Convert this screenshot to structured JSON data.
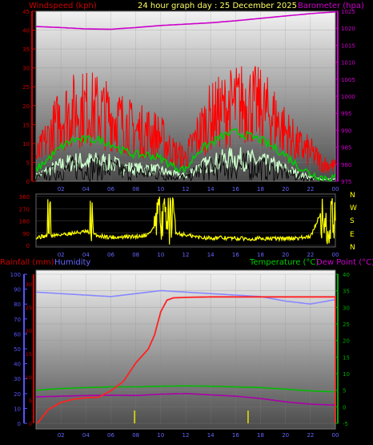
{
  "header": {
    "wind_title": "Windspeed (kph)",
    "main_title": "24 hour graph day : 25 December 2025",
    "baro_title": "Barometer (hpa)",
    "rain_title": "Rainfall (mm)",
    "humidity_title": "Humidity",
    "temp_title": "Temperature (°C)",
    "dew_title": "Dew Point (°C)"
  },
  "colors": {
    "gust": "#ff0000",
    "wind_avg": "#00cc00",
    "wind_low": "#ccffcc",
    "barometer": "#cc00cc",
    "direction": "#ffff00",
    "rain": "#ff2222",
    "humidity": "#8888ff",
    "temperature": "#00bb00",
    "dewpoint": "#aa00aa",
    "axis_left": "#cc0000",
    "axis_right": "#cc00cc",
    "axis_humid": "#5555ff",
    "axis_temp": "#00aa00",
    "hour_labels": "#6666ff"
  },
  "compass": [
    "N",
    "W",
    "S",
    "E",
    "N"
  ],
  "chart_data": [
    {
      "type": "line",
      "id": "wind_baro",
      "x_ticks": [
        "02",
        "04",
        "06",
        "08",
        "10",
        "12",
        "14",
        "16",
        "18",
        "20",
        "22",
        "00"
      ],
      "y_left_ticks": [
        "0",
        "5",
        "10",
        "15",
        "20",
        "25",
        "30",
        "35",
        "40",
        "45"
      ],
      "y_right_ticks": [
        "975",
        "980",
        "985",
        "990",
        "995",
        "1000",
        "1005",
        "1010",
        "1015",
        "1020",
        "1025"
      ],
      "ylim_left": [
        0,
        45
      ],
      "ylim_right": [
        975,
        1025
      ],
      "series": [
        {
          "name": "Windspeed (kph)",
          "x": [
            0,
            1,
            2,
            3,
            4,
            5,
            6,
            7,
            8,
            9,
            10,
            11,
            12,
            13,
            14,
            15,
            16,
            17,
            18,
            19,
            20,
            21,
            22,
            23,
            24
          ],
          "values": [
            8,
            15,
            22,
            24,
            25,
            24,
            22,
            20,
            17,
            17,
            15,
            10,
            8,
            16,
            22,
            24,
            26,
            27,
            25,
            22,
            17,
            12,
            10,
            6,
            5
          ]
        },
        {
          "name": "Average wind",
          "x": [
            0,
            1,
            2,
            3,
            4,
            5,
            6,
            7,
            8,
            9,
            10,
            11,
            12,
            13,
            14,
            15,
            16,
            17,
            18,
            19,
            20,
            21,
            22,
            23,
            24
          ],
          "values": [
            3,
            6,
            9,
            11,
            11,
            11,
            10,
            8,
            7,
            7,
            6,
            4,
            3,
            8,
            10,
            12,
            13,
            12,
            11,
            9,
            7,
            4,
            2,
            1,
            1
          ]
        },
        {
          "name": "Barometer (hpa)",
          "x": [
            0,
            2,
            4,
            6,
            8,
            10,
            12,
            14,
            16,
            18,
            20,
            22,
            24
          ],
          "values": [
            1020.5,
            1020.2,
            1019.8,
            1019.7,
            1020.2,
            1020.8,
            1021.2,
            1021.6,
            1022.2,
            1022.9,
            1023.6,
            1024.3,
            1024.8
          ]
        }
      ]
    },
    {
      "type": "scatter",
      "id": "direction",
      "x_ticks": [
        "02",
        "04",
        "06",
        "08",
        "10",
        "12",
        "14",
        "16",
        "18",
        "20",
        "22",
        "00"
      ],
      "y_ticks": [
        "0",
        "90",
        "180",
        "270",
        "360"
      ],
      "ylim": [
        0,
        360
      ],
      "series": [
        {
          "name": "Wind direction",
          "x": [
            0,
            1,
            2,
            3,
            4,
            5,
            6,
            7,
            8,
            9,
            10,
            11,
            12,
            13,
            14,
            15,
            16,
            17,
            18,
            19,
            20,
            21,
            22,
            23,
            24
          ],
          "values": [
            60,
            70,
            80,
            90,
            100,
            70,
            60,
            60,
            65,
            80,
            200,
            100,
            75,
            60,
            55,
            55,
            50,
            50,
            50,
            50,
            50,
            55,
            60,
            280,
            200
          ]
        }
      ]
    },
    {
      "type": "line",
      "id": "rain_temp",
      "x_ticks": [
        "02",
        "04",
        "06",
        "08",
        "10",
        "12",
        "14",
        "16",
        "18",
        "20",
        "22",
        "00"
      ],
      "y_humid_ticks": [
        "0",
        "10",
        "20",
        "30",
        "40",
        "50",
        "60",
        "70",
        "80",
        "90",
        "100"
      ],
      "y_rain_ticks": [
        "0",
        "5",
        "10",
        "15",
        "20",
        "25",
        "30"
      ],
      "y_temp_ticks": [
        "-5",
        "0",
        "5",
        "10",
        "15",
        "20",
        "25",
        "30",
        "35",
        "40"
      ],
      "ylim_humid": [
        0,
        100
      ],
      "ylim_rain": [
        0,
        30
      ],
      "ylim_temp": [
        -5,
        40
      ],
      "series": [
        {
          "name": "Rainfall (mm)",
          "x": [
            0,
            1,
            2,
            3,
            4,
            5,
            6,
            7,
            8,
            9,
            9.5,
            10,
            10.5,
            11,
            12,
            14,
            16,
            18,
            20,
            22,
            24
          ],
          "values": [
            0,
            3,
            4.5,
            5.2,
            5.5,
            5.6,
            7,
            9,
            13,
            16,
            19,
            24,
            26.5,
            27,
            27.1,
            27.2,
            27.2,
            27.2,
            27.2,
            27.2,
            27.2
          ]
        },
        {
          "name": "Humidity",
          "x": [
            0,
            2,
            4,
            6,
            8,
            10,
            12,
            14,
            16,
            18,
            20,
            22,
            24
          ],
          "values": [
            88,
            87,
            86,
            85,
            87,
            89,
            88,
            87,
            86,
            85,
            82,
            80,
            83
          ]
        },
        {
          "name": "Temperature (°C)",
          "x": [
            0,
            2,
            4,
            6,
            8,
            10,
            12,
            14,
            16,
            18,
            20,
            22,
            24
          ],
          "values": [
            5,
            5.5,
            5.8,
            6,
            6,
            6.2,
            6.3,
            6.2,
            6,
            5.8,
            5.3,
            4.8,
            4.5
          ]
        },
        {
          "name": "Dew Point (°C)",
          "x": [
            0,
            2,
            4,
            6,
            8,
            10,
            12,
            14,
            16,
            18,
            20,
            22,
            24
          ],
          "values": [
            3,
            3.2,
            3.4,
            3.5,
            3.4,
            3.8,
            4,
            3.6,
            3.2,
            2.5,
            1.5,
            0.8,
            0.5
          ]
        }
      ]
    }
  ]
}
